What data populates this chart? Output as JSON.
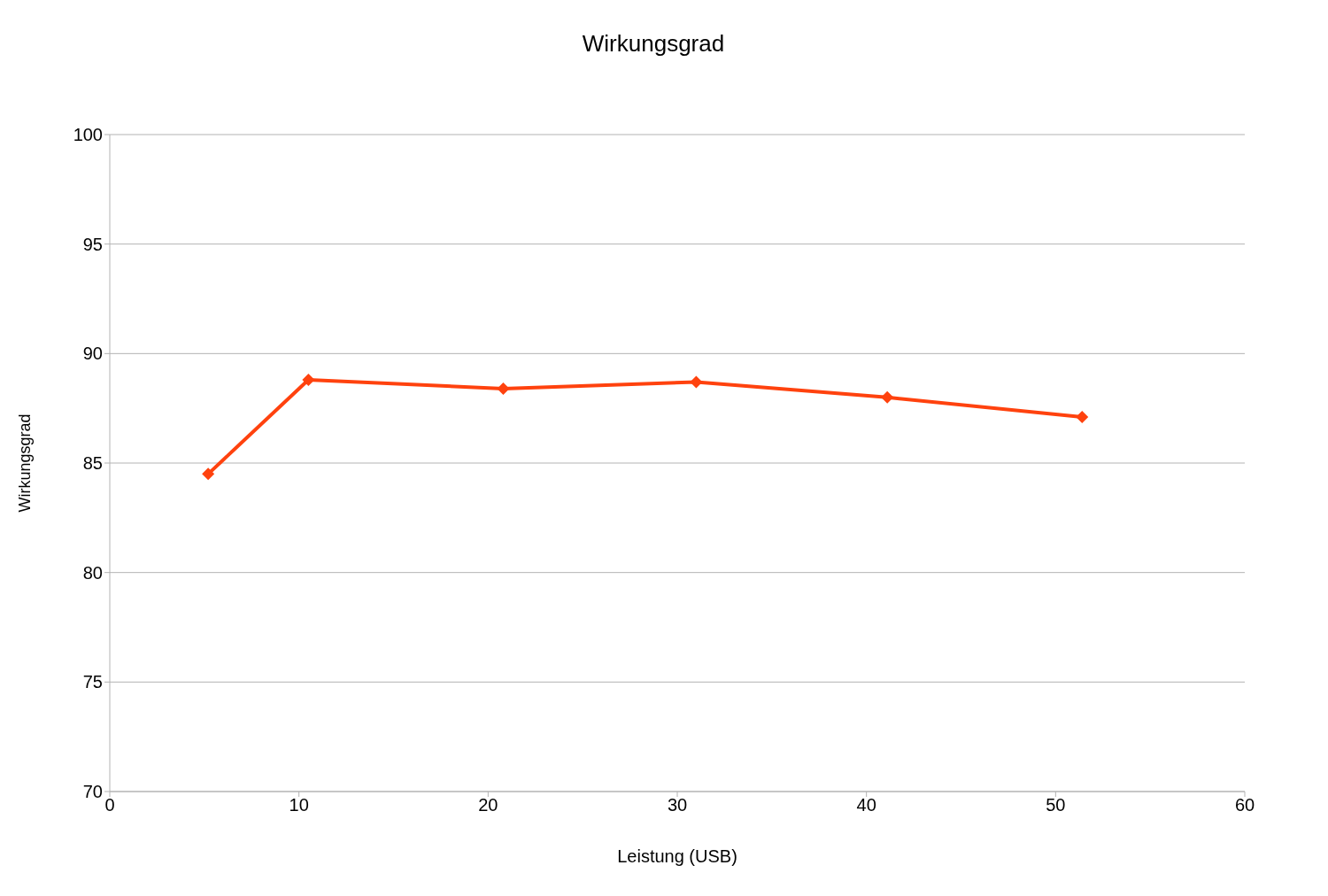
{
  "chart_data": {
    "type": "line",
    "title": "Wirkungsgrad",
    "xlabel": "Leistung (USB)",
    "ylabel": "Wirkungsgrad",
    "x": [
      5.2,
      10.5,
      20.8,
      31,
      41.1,
      51.4
    ],
    "series": [
      {
        "color": "#ff420e",
        "values": [
          84.5,
          88.8,
          88.4,
          88.7,
          88.0,
          87.1
        ]
      }
    ],
    "xlim": [
      0,
      60
    ],
    "xticks": [
      0,
      10,
      20,
      30,
      40,
      50,
      60
    ],
    "ylim": [
      70,
      100
    ],
    "yticks": [
      70,
      75,
      80,
      85,
      90,
      95,
      100
    ],
    "grid": "y",
    "marker": "diamond",
    "line_style": "solid",
    "legend": false
  }
}
